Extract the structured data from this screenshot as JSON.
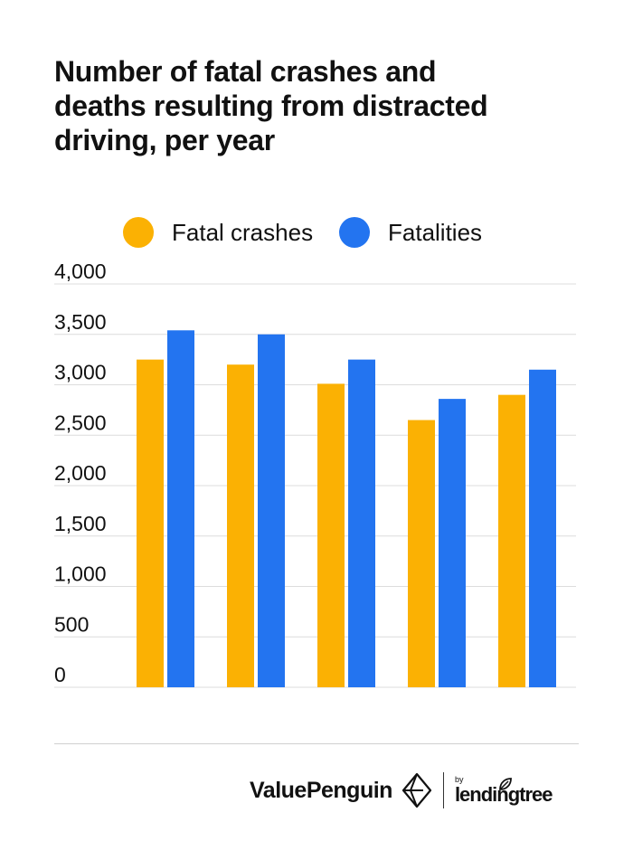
{
  "title": [
    "Number of fatal crashes and",
    "deaths resulting from distracted",
    "driving, per year"
  ],
  "legend": [
    {
      "label": "Fatal crashes",
      "color": "#FBB103"
    },
    {
      "label": "Fatalities",
      "color": "#2374F0"
    }
  ],
  "chart_data": {
    "type": "bar",
    "title": "Number of fatal crashes and deaths resulting from distracted driving, per year",
    "categories": [
      "",
      "",
      "",
      "",
      ""
    ],
    "series": [
      {
        "name": "Fatal crashes",
        "color": "#FBB103",
        "values": [
          3250,
          3200,
          3010,
          2650,
          2900
        ]
      },
      {
        "name": "Fatalities",
        "color": "#2374F0",
        "values": [
          3540,
          3500,
          3250,
          2860,
          3150
        ]
      }
    ],
    "ylim": [
      0,
      4000
    ],
    "yticks": [
      0,
      500,
      1000,
      1500,
      2000,
      2500,
      3000,
      3500,
      4000
    ],
    "ytick_labels": [
      "0",
      "500",
      "1,000",
      "1,500",
      "2,000",
      "2,500",
      "3,000",
      "3,500",
      "4,000"
    ],
    "xlabel": "",
    "ylabel": "",
    "grid": true,
    "legend_position": "top"
  },
  "footer": {
    "brand": "ValuePenguin",
    "by": "by",
    "partner": "lendingtree",
    "logo_icon": "valuepenguin-diamond-icon",
    "partner_icon": "lendingtree-leaf-icon"
  }
}
